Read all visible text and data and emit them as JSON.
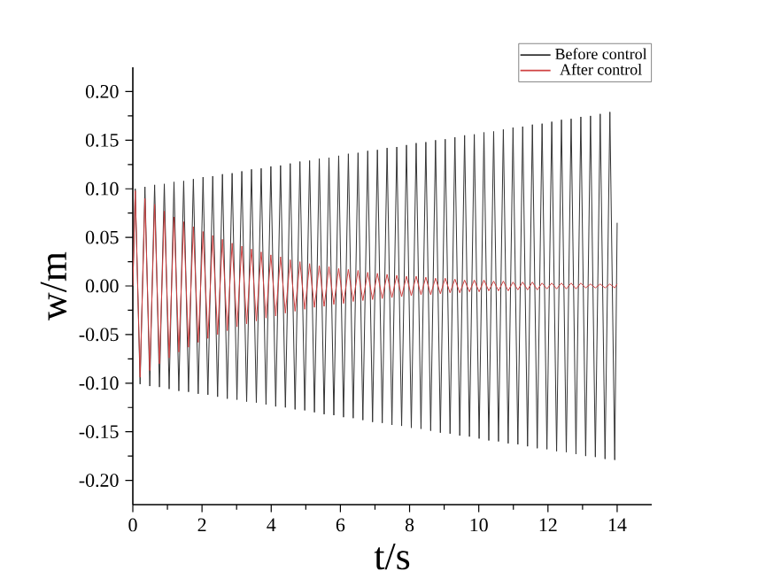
{
  "chart_data": {
    "type": "line",
    "xlabel": "t/s",
    "ylabel": "w/m",
    "x": [
      0,
      0.07,
      0.21,
      0.35,
      0.49,
      0.63,
      0.77,
      0.91,
      1.05,
      1.19,
      1.33,
      1.47,
      1.61,
      1.75,
      1.89,
      2.03,
      2.17,
      2.31,
      2.45,
      2.59,
      2.73,
      2.87,
      3.01,
      3.15,
      3.29,
      3.43,
      3.57,
      3.71,
      3.85,
      3.99,
      4.13,
      4.27,
      4.41,
      4.55,
      4.69,
      4.83,
      4.97,
      5.11,
      5.25,
      5.39,
      5.53,
      5.67,
      5.81,
      5.95,
      6.09,
      6.23,
      6.37,
      6.51,
      6.65,
      6.79,
      6.93,
      7.07,
      7.21,
      7.35,
      7.49,
      7.63,
      7.77,
      7.91,
      8.05,
      8.19,
      8.33,
      8.47,
      8.61,
      8.75,
      8.89,
      9.03,
      9.17,
      9.31,
      9.45,
      9.59,
      9.73,
      9.87,
      10.01,
      10.15,
      10.29,
      10.43,
      10.57,
      10.71,
      10.85,
      10.99,
      11.13,
      11.27,
      11.41,
      11.55,
      11.69,
      11.83,
      11.97,
      12.11,
      12.25,
      12.39,
      12.53,
      12.67,
      12.81,
      12.95,
      13.09,
      13.23,
      13.37,
      13.51,
      13.65,
      13.79,
      13.93,
      14
    ],
    "series": [
      {
        "name": "Before control",
        "color": "#333333",
        "values": [
          0,
          0.1,
          -0.101,
          0.102,
          -0.103,
          0.104,
          -0.104,
          0.105,
          -0.106,
          0.107,
          -0.108,
          0.108,
          -0.109,
          0.11,
          -0.111,
          0.112,
          -0.112,
          0.113,
          -0.114,
          0.115,
          -0.116,
          0.116,
          -0.117,
          0.118,
          -0.119,
          0.12,
          -0.12,
          0.121,
          -0.122,
          0.123,
          -0.124,
          0.124,
          -0.125,
          0.126,
          -0.127,
          0.128,
          -0.128,
          0.129,
          -0.13,
          0.131,
          -0.132,
          0.132,
          -0.133,
          0.134,
          -0.135,
          0.136,
          -0.136,
          0.137,
          -0.138,
          0.139,
          -0.14,
          0.14,
          -0.141,
          0.142,
          -0.143,
          0.143,
          -0.144,
          0.145,
          -0.146,
          0.147,
          -0.147,
          0.148,
          -0.149,
          0.15,
          -0.151,
          0.151,
          -0.152,
          0.153,
          -0.154,
          0.155,
          -0.155,
          0.156,
          -0.157,
          0.158,
          -0.159,
          0.159,
          -0.16,
          0.161,
          -0.162,
          0.163,
          -0.163,
          0.164,
          -0.165,
          0.166,
          -0.167,
          0.167,
          -0.168,
          0.169,
          -0.17,
          0.171,
          -0.171,
          0.172,
          -0.173,
          0.174,
          -0.175,
          0.175,
          -0.176,
          0.177,
          -0.178,
          0.179,
          -0.179,
          0.065
        ]
      },
      {
        "name": "After control",
        "color": "#d04040",
        "values": [
          0,
          0.098,
          -0.094,
          0.09,
          -0.087,
          0.084,
          -0.08,
          0.077,
          -0.074,
          0.071,
          -0.068,
          0.066,
          -0.063,
          0.061,
          -0.058,
          0.056,
          -0.054,
          0.052,
          -0.05,
          0.048,
          -0.046,
          0.044,
          -0.042,
          0.041,
          -0.039,
          0.038,
          -0.036,
          0.035,
          -0.033,
          0.032,
          -0.031,
          0.03,
          -0.028,
          0.027,
          -0.026,
          0.025,
          -0.024,
          0.023,
          -0.022,
          0.021,
          -0.021,
          0.02,
          -0.019,
          0.018,
          -0.018,
          0.017,
          -0.016,
          0.016,
          -0.015,
          0.014,
          -0.014,
          0.013,
          -0.013,
          0.012,
          -0.012,
          0.011,
          -0.011,
          0.01,
          -0.01,
          0.01,
          -0.009,
          0.009,
          -0.009,
          0.008,
          -0.008,
          0.008,
          -0.007,
          0.007,
          -0.007,
          0.006,
          -0.006,
          0.006,
          -0.006,
          0.006,
          -0.005,
          0.005,
          -0.005,
          0.005,
          -0.005,
          0.004,
          -0.004,
          0.004,
          -0.004,
          0.004,
          -0.004,
          0.003,
          -0.003,
          0.003,
          -0.003,
          0.003,
          -0.003,
          0.003,
          -0.003,
          0.003,
          -0.002,
          0.002,
          -0.002,
          0.002,
          -0.002,
          0.002,
          -0.002,
          0.002
        ]
      }
    ],
    "xlim": [
      0,
      15
    ],
    "xticks": [
      0,
      2,
      4,
      6,
      8,
      10,
      12,
      14
    ],
    "ylim": [
      -0.225,
      0.225
    ],
    "yticks": [
      {
        "value": -0.2,
        "label": "-0.20"
      },
      {
        "value": -0.15,
        "label": "-0.15"
      },
      {
        "value": -0.1,
        "label": "-0.10"
      },
      {
        "value": -0.05,
        "label": "-0.05"
      },
      {
        "value": 0,
        "label": "0.00"
      },
      {
        "value": 0.05,
        "label": "0.05"
      },
      {
        "value": 0.1,
        "label": "0.10"
      },
      {
        "value": 0.15,
        "label": "0.15"
      },
      {
        "value": 0.2,
        "label": "0.20"
      }
    ],
    "legend": "top right",
    "grid": false,
    "marker": "none",
    "line_style": "solid"
  }
}
